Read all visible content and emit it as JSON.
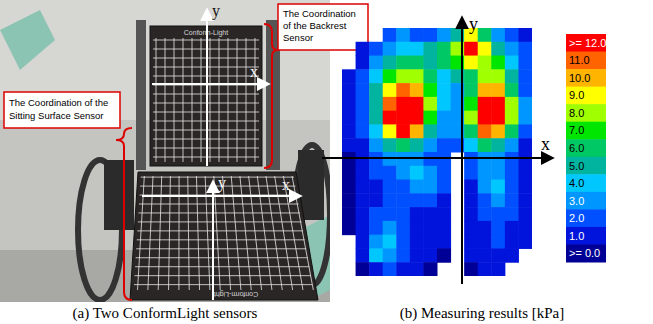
{
  "photo": {
    "caption": "(a) Two ConformLight sensors",
    "sensor_label": "Conform-Light",
    "backrest": {
      "callout": [
        "The Coordination",
        "of the Backrest",
        "Sensor"
      ],
      "x_label": "x",
      "y_label": "y"
    },
    "seat": {
      "callout": [
        "The Coordination of the",
        "Sitting Surface Sensor"
      ],
      "x_label": "x",
      "y_label": "y"
    }
  },
  "chart_data": {
    "type": "heatmap",
    "caption": "(b) Measuring results [kPa]",
    "x_label": "x",
    "y_label": "y",
    "cells": [
      [
        null,
        null,
        null,
        2,
        3,
        2,
        2,
        3,
        5,
        9,
        6,
        3,
        2,
        1
      ],
      [
        null,
        1,
        2,
        3,
        4,
        4,
        5,
        6,
        8,
        12,
        9,
        5,
        3,
        2
      ],
      [
        null,
        1,
        3,
        5,
        6,
        6,
        5,
        6,
        7,
        9,
        8,
        7,
        4,
        2
      ],
      [
        1,
        2,
        4,
        7,
        8,
        8,
        6,
        4,
        5,
        6,
        8,
        8,
        5,
        2
      ],
      [
        1,
        2,
        5,
        9,
        11,
        10,
        7,
        4,
        3,
        6,
        10,
        10,
        6,
        2
      ],
      [
        1,
        2,
        5,
        11,
        12,
        12,
        8,
        4,
        3,
        7,
        12,
        12,
        8,
        3
      ],
      [
        1,
        2,
        5,
        12,
        12,
        12,
        7,
        3,
        3,
        8,
        12,
        12,
        8,
        3
      ],
      [
        1,
        2,
        4,
        9,
        12,
        10,
        5,
        3,
        3,
        6,
        11,
        10,
        6,
        2
      ],
      [
        1,
        1,
        3,
        5,
        6,
        5,
        3,
        2,
        2,
        4,
        6,
        5,
        3,
        1
      ],
      [
        0,
        1,
        2,
        3,
        3,
        3,
        2,
        2,
        null,
        2,
        3,
        3,
        2,
        1
      ],
      [
        0,
        1,
        2,
        2,
        3,
        4,
        3,
        2,
        null,
        2,
        3,
        3,
        2,
        1
      ],
      [
        0,
        1,
        1,
        2,
        2,
        3,
        3,
        2,
        null,
        1,
        3,
        4,
        2,
        1
      ],
      [
        0,
        1,
        1,
        2,
        2,
        2,
        2,
        1,
        null,
        1,
        2,
        3,
        2,
        1
      ],
      [
        0,
        1,
        2,
        2,
        2,
        1,
        1,
        1,
        null,
        1,
        2,
        2,
        2,
        1
      ],
      [
        0,
        1,
        2,
        3,
        2,
        1,
        1,
        1,
        null,
        1,
        1,
        2,
        1,
        1
      ],
      [
        null,
        1,
        3,
        4,
        2,
        1,
        1,
        1,
        null,
        1,
        1,
        2,
        1,
        1
      ],
      [
        null,
        1,
        4,
        3,
        2,
        1,
        1,
        0,
        null,
        1,
        1,
        1,
        1,
        null
      ],
      [
        null,
        0,
        1,
        2,
        1,
        1,
        0,
        null,
        null,
        0,
        1,
        1,
        null,
        null
      ]
    ],
    "colorbar": {
      "ticks": [
        {
          "value": 12,
          "label": ">= 12.0"
        },
        {
          "value": 11,
          "label": "11.0"
        },
        {
          "value": 10,
          "label": "10.0"
        },
        {
          "value": 9,
          "label": "9.0"
        },
        {
          "value": 8,
          "label": "8.0"
        },
        {
          "value": 7,
          "label": "7.0"
        },
        {
          "value": 6,
          "label": "6.0"
        },
        {
          "value": 5,
          "label": "5.0"
        },
        {
          "value": 4,
          "label": "4.0"
        },
        {
          "value": 3,
          "label": "3.0"
        },
        {
          "value": 2,
          "label": "2.0"
        },
        {
          "value": 1,
          "label": "1.0"
        },
        {
          "value": 0,
          "label": ">= 0.0"
        }
      ],
      "colors": [
        "#ff0000",
        "#ff6400",
        "#ffb400",
        "#ffff00",
        "#a0ff00",
        "#00e600",
        "#00c864",
        "#00b4a0",
        "#00c8ff",
        "#0096ff",
        "#0050ff",
        "#0014dc",
        "#000096"
      ]
    }
  }
}
